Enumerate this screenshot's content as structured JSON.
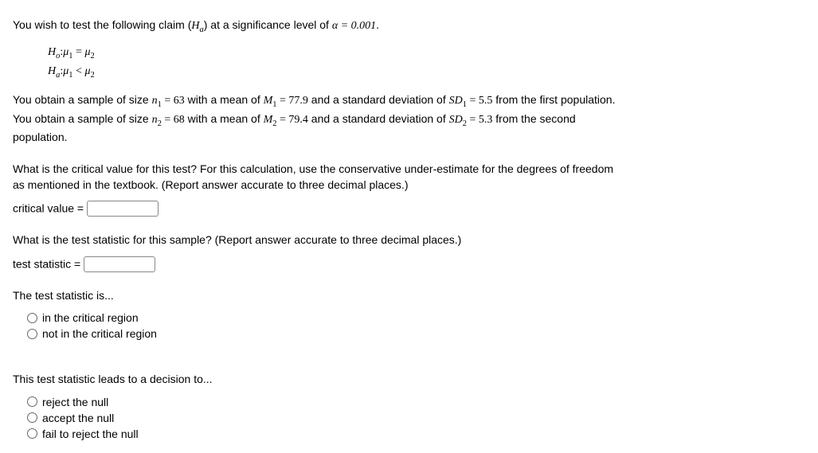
{
  "intro": {
    "prefix": "You wish to test the following claim (",
    "ha_symbol_H": "H",
    "ha_symbol_sub": "a",
    "mid": ") at a significance level of ",
    "alpha_eq": "α = 0.001",
    "period": "."
  },
  "hypotheses": {
    "h0": {
      "H": "H",
      "sub": "o",
      "colon": ":",
      "mu1": "μ",
      "s1": "1",
      "eq": " = ",
      "mu2": "μ",
      "s2": "2"
    },
    "ha": {
      "H": "H",
      "sub": "a",
      "colon": ":",
      "mu1": "μ",
      "s1": "1",
      "lt": " < ",
      "mu2": "μ",
      "s2": "2"
    }
  },
  "samples_text": {
    "t1": "You obtain a sample of size ",
    "n1": "n",
    "n1s": "1",
    "n1eq": " = 63",
    "t2": " with a mean of ",
    "m1": "M",
    "m1s": "1",
    "m1eq": " = 77.9",
    "t3": " and a standard deviation of ",
    "sd1": "SD",
    "sd1s": "1",
    "sd1eq": " = 5.5",
    "t4": " from the first population. You obtain a sample of size ",
    "n2": "n",
    "n2s": "2",
    "n2eq": " = 68",
    "t5": " with a mean of ",
    "m2": "M",
    "m2s": "2",
    "m2eq": " = 79.4",
    "t6": " and a standard deviation of ",
    "sd2": "SD",
    "sd2s": "2",
    "sd2eq": " = 5.3",
    "t7": " from the second population."
  },
  "q_crit": {
    "text": "What is the critical value for this test? For this calculation, use the conservative under-estimate for the degrees of freedom as mentioned in the textbook. (Report answer accurate to three decimal places.)",
    "label": "critical value ="
  },
  "q_stat": {
    "text": "What is the test statistic for this sample? (Report answer accurate to three decimal places.)",
    "label": "test statistic ="
  },
  "q_region": {
    "stem": "The test statistic is...",
    "opt1": "in the critical region",
    "opt2": "not in the critical region"
  },
  "q_decision": {
    "stem": "This test statistic leads to a decision to...",
    "opt1": "reject the null",
    "opt2": "accept the null",
    "opt3": "fail to reject the null"
  }
}
